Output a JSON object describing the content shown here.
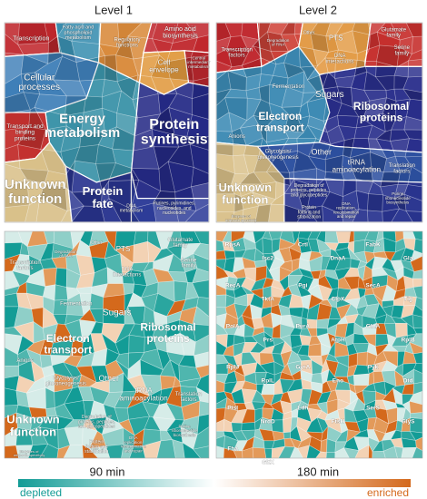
{
  "column_titles": [
    "Level 1",
    "Level 2"
  ],
  "time_labels": [
    "90 min",
    "180 min"
  ],
  "colorbar": {
    "left": "depleted",
    "right": "enriched"
  },
  "panels": [
    {
      "labels": [
        [
          "Transcription"
        ],
        [
          "Fatty acid and",
          "phospholipid",
          "metabolism"
        ],
        [
          "Regulatory",
          "functions"
        ],
        [
          "Amino acid",
          "biosynthesis"
        ],
        [
          "Central",
          "intermediary",
          "metabolism"
        ],
        [
          "Cell",
          "envelope"
        ],
        [
          "Cellular",
          "processes"
        ],
        [
          "Transport and",
          "binding",
          "proteins"
        ],
        [
          "Energy",
          "metabolism"
        ],
        [
          "Protein",
          "synthesis"
        ],
        [
          "Unknown",
          "function"
        ],
        [
          "Protein",
          "fate"
        ],
        [
          "Purines, pyrimidines,",
          "nucleosides, and",
          "nucleotides"
        ],
        [
          "DNA",
          "metabolism"
        ]
      ]
    },
    {
      "labels": [
        [
          "Transcription",
          "factors"
        ],
        [
          "Degradation",
          "of RNA"
        ],
        [
          "Other"
        ],
        [
          "PTS"
        ],
        [
          "DNA",
          "interactions"
        ],
        [
          "Glutamate",
          "family"
        ],
        [
          "Serine",
          "family"
        ],
        [
          "Fermentation"
        ],
        [
          "Sugars"
        ],
        [
          "Electron",
          "transport"
        ],
        [
          "Ribosomal",
          "proteins"
        ],
        [
          "Anions"
        ],
        [
          "Glycolysis/",
          "gluconeogenesis"
        ],
        [
          "Other"
        ],
        [
          "tRNA",
          "aminoacylation"
        ],
        [
          "Translation",
          "factors"
        ],
        [
          "Unknown",
          "function"
        ],
        [
          "Degradation of",
          "proteins, peptides,",
          "and glycopeptides"
        ],
        [
          "Protein",
          "folding and",
          "stabilization"
        ],
        [
          "Purine",
          "ribonucleotide",
          "biosynthesis"
        ],
        [
          "DNA",
          "replication,",
          "recombination",
          "and repair"
        ],
        [
          "Enzymes of",
          "unknown specificity"
        ]
      ]
    },
    {
      "labels": [
        [
          "Transcription",
          "factors"
        ],
        [
          "Degradation",
          "of RNA"
        ],
        [
          "Other"
        ],
        [
          "PTS"
        ],
        [
          "DNA",
          "interactions"
        ],
        [
          "Glutamate",
          "family"
        ],
        [
          "Serine",
          "family"
        ],
        [
          "Fermentation"
        ],
        [
          "Sugars"
        ],
        [
          "Electron",
          "transport"
        ],
        [
          "Ribosomal",
          "proteins"
        ],
        [
          "Anions"
        ],
        [
          "Glycolysis/",
          "gluconeogenesis"
        ],
        [
          "Other"
        ],
        [
          "tRNA",
          "aminoacylation"
        ],
        [
          "Translation",
          "factors"
        ],
        [
          "Unknown",
          "function"
        ],
        [
          "Degradation of",
          "proteins, peptides,",
          "and glycopeptides"
        ],
        [
          "Protein",
          "folding and",
          "stabilization"
        ],
        [
          "Purine",
          "ribonucleotide",
          "biosynthesis"
        ],
        [
          "DNA",
          "replication,",
          "recombination",
          "and repair"
        ],
        [
          "Enzymes of",
          "unknown specificity"
        ]
      ]
    },
    {
      "labels": [
        [
          "RpsA"
        ],
        [
          "Isc2"
        ],
        [
          "CrtI"
        ],
        [
          "DnaA"
        ],
        [
          "FabK"
        ],
        [
          "Gla"
        ],
        [
          "RecA"
        ],
        [
          "TktA"
        ],
        [
          "Pgi"
        ],
        [
          "ClpX"
        ],
        [
          "SecA"
        ],
        [
          "Tig"
        ],
        [
          "PolA"
        ],
        [
          "Prs"
        ],
        [
          "PurA"
        ],
        [
          "AtpH"
        ],
        [
          "GlnA"
        ],
        [
          "RplB"
        ],
        [
          "RplJ"
        ],
        [
          "RplL"
        ],
        [
          "GyrA"
        ],
        [
          "Eno"
        ],
        [
          "Pyk"
        ],
        [
          "Dtd"
        ],
        [
          "PtsI"
        ],
        [
          "NrdD"
        ],
        [
          "Ldh"
        ],
        [
          "FtsH"
        ],
        [
          "SerS"
        ],
        [
          "GlyS"
        ],
        [
          "Fba"
        ],
        [
          "GltX"
        ]
      ]
    }
  ]
}
